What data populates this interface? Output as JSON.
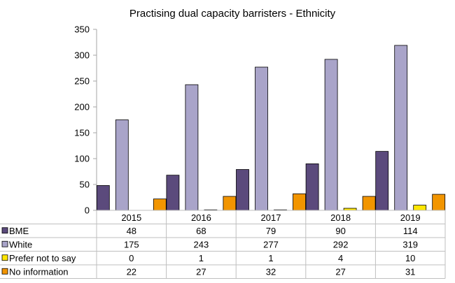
{
  "chart_data": {
    "type": "bar",
    "title": "Practising dual capacity barristers - Ethnicity",
    "categories": [
      "2015",
      "2016",
      "2017",
      "2018",
      "2019"
    ],
    "ylim": [
      0,
      350
    ],
    "yticks": [
      "0",
      "50",
      "100",
      "150",
      "200",
      "250",
      "300",
      "350"
    ],
    "grid": false,
    "legend_placement": "data-table",
    "series": [
      {
        "name": "BME",
        "color": "#5b4a7c",
        "values": [
          48,
          68,
          79,
          90,
          114
        ]
      },
      {
        "name": "White",
        "color": "#a9a4c9",
        "values": [
          175,
          243,
          277,
          292,
          319
        ]
      },
      {
        "name": "Prefer not to say",
        "color": "#ffe600",
        "values": [
          0,
          1,
          1,
          4,
          10
        ]
      },
      {
        "name": "No information",
        "color": "#f29500",
        "values": [
          22,
          27,
          32,
          27,
          31
        ]
      }
    ]
  }
}
